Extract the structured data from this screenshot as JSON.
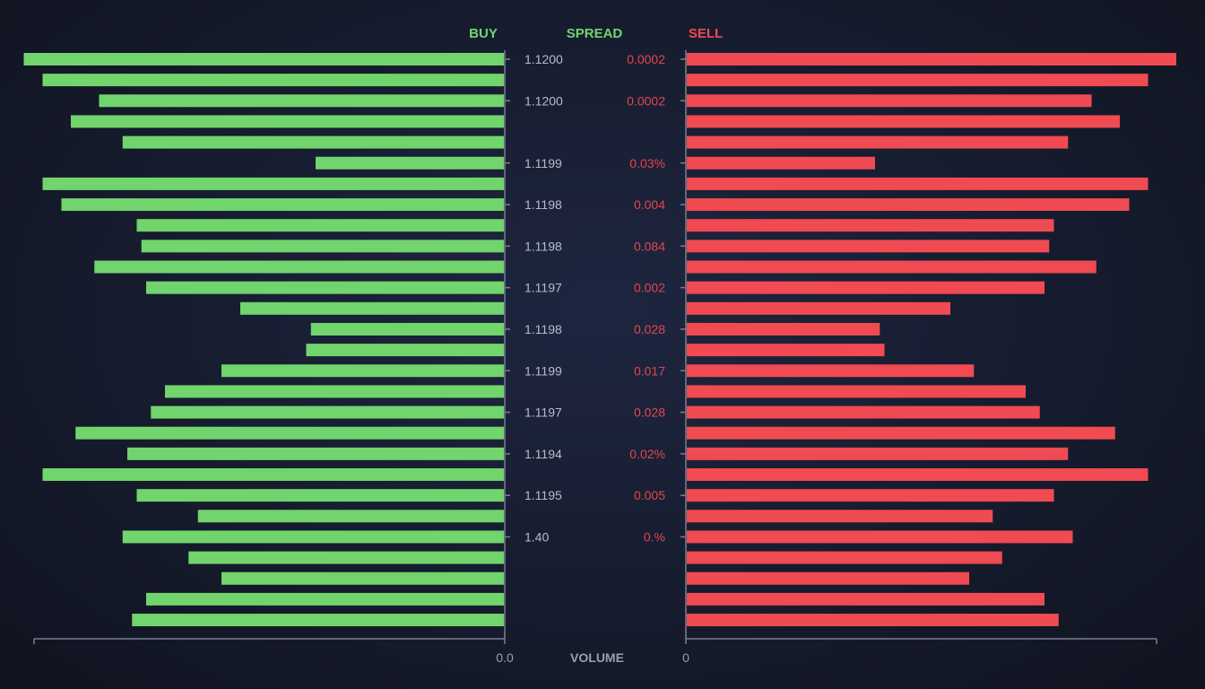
{
  "chart_data": {
    "type": "bar",
    "orientation": "horizontal-mirrored",
    "headers": {
      "buy": "BUY",
      "spread": "SPREAD",
      "sell": "SELL"
    },
    "xlabel": "VOLUME",
    "x_tick_labels": {
      "buy": "0.0",
      "sell": "0"
    },
    "colors": {
      "buy": "#72d46c",
      "sell": "#f04a52",
      "spread_header": "#72d46c",
      "sell_header": "#f04a52",
      "price_text": "#b8bcc8",
      "spread_text": "#e5454c",
      "axis": "#7a8090"
    },
    "grid": false,
    "series": [
      {
        "name": "BUY",
        "values": [
          102,
          98,
          86,
          92,
          81,
          40,
          98,
          94,
          78,
          77,
          87,
          76,
          56,
          41,
          42,
          60,
          72,
          75,
          91,
          80,
          98,
          78,
          65,
          81,
          67,
          60,
          76,
          79
        ]
      },
      {
        "name": "SELL",
        "values": [
          104,
          98,
          86,
          92,
          81,
          40,
          98,
          94,
          78,
          77,
          87,
          76,
          56,
          41,
          42,
          61,
          72,
          75,
          91,
          81,
          98,
          78,
          65,
          82,
          67,
          60,
          76,
          79
        ]
      }
    ],
    "row_labels": [
      {
        "row": 0,
        "price": "1.1200",
        "spread": "0.0002"
      },
      {
        "row": 2,
        "price": "1.1200",
        "spread": "0.0002"
      },
      {
        "row": 5,
        "price": "1.1199",
        "spread": "0.03%"
      },
      {
        "row": 7,
        "price": "1.1198",
        "spread": "0.004"
      },
      {
        "row": 9,
        "price": "1.1198",
        "spread": "0.084"
      },
      {
        "row": 11,
        "price": "1.1197",
        "spread": "0.002"
      },
      {
        "row": 13,
        "price": "1.1198",
        "spread": "0.028"
      },
      {
        "row": 15,
        "price": "1.1199",
        "spread": "0.017"
      },
      {
        "row": 17,
        "price": "1.1197",
        "spread": "0.028"
      },
      {
        "row": 19,
        "price": "1.1194",
        "spread": "0.02%"
      },
      {
        "row": 21,
        "price": "1.1195",
        "spread": "0.005"
      },
      {
        "row": 23,
        "price": "1.40",
        "spread": "0.%"
      }
    ],
    "xlim": [
      0,
      100
    ]
  }
}
